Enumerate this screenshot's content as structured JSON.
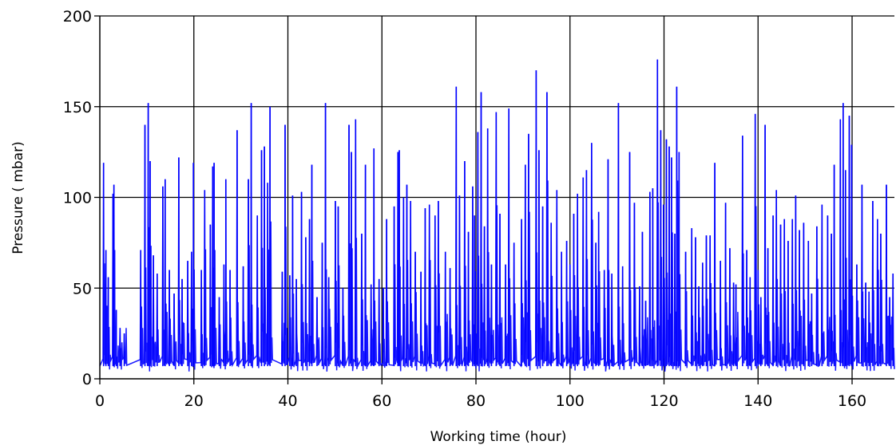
{
  "chart_data": {
    "type": "line",
    "title": "",
    "xlabel": "Working time (hour)",
    "ylabel": "Pressure ( mbar)",
    "xlim": [
      0,
      169
    ],
    "ylim": [
      0,
      200
    ],
    "xticks": [
      0,
      20,
      40,
      60,
      80,
      100,
      120,
      140,
      160
    ],
    "yticks": [
      0,
      50,
      100,
      150,
      200
    ],
    "xtick_labels": [
      "0",
      "20",
      "40",
      "60",
      "80",
      "100",
      "120",
      "140",
      "160"
    ],
    "ytick_labels": [
      "0",
      "50",
      "100",
      "150",
      "200"
    ],
    "grid": true,
    "series": [
      {
        "color": "#0000ff",
        "baseline": 7,
        "peaks": [
          [
            0.8,
            119
          ],
          [
            1.3,
            71
          ],
          [
            1.8,
            56
          ],
          [
            2.8,
            102
          ],
          [
            3.0,
            107
          ],
          [
            3.5,
            38
          ],
          [
            4.3,
            28
          ],
          [
            5.2,
            25
          ],
          [
            8.7,
            71
          ],
          [
            9.6,
            140
          ],
          [
            10.3,
            152
          ],
          [
            10.7,
            120
          ],
          [
            11.4,
            68
          ],
          [
            12.2,
            58
          ],
          [
            13.4,
            106
          ],
          [
            13.9,
            110
          ],
          [
            14.8,
            60
          ],
          [
            15.8,
            47
          ],
          [
            16.8,
            122
          ],
          [
            17.5,
            55
          ],
          [
            18.7,
            65
          ],
          [
            19.5,
            70
          ],
          [
            19.9,
            119
          ],
          [
            21.6,
            60
          ],
          [
            22.3,
            104
          ],
          [
            23.5,
            85
          ],
          [
            24.0,
            117
          ],
          [
            24.3,
            119
          ],
          [
            25.4,
            45
          ],
          [
            26.4,
            63
          ],
          [
            26.8,
            110
          ],
          [
            27.7,
            60
          ],
          [
            29.2,
            137
          ],
          [
            30.5,
            62
          ],
          [
            31.6,
            110
          ],
          [
            32.2,
            152
          ],
          [
            33.5,
            90
          ],
          [
            34.4,
            126
          ],
          [
            35.0,
            128
          ],
          [
            35.7,
            108
          ],
          [
            36.2,
            150
          ],
          [
            38.8,
            59
          ],
          [
            39.4,
            140
          ],
          [
            40.4,
            57
          ],
          [
            41.0,
            101
          ],
          [
            41.8,
            55
          ],
          [
            42.9,
            103
          ],
          [
            43.8,
            78
          ],
          [
            44.6,
            88
          ],
          [
            45.1,
            118
          ],
          [
            46.2,
            45
          ],
          [
            47.3,
            75
          ],
          [
            48.0,
            152
          ],
          [
            48.7,
            56
          ],
          [
            50.1,
            98
          ],
          [
            50.7,
            95
          ],
          [
            51.7,
            50
          ],
          [
            53.0,
            140
          ],
          [
            53.5,
            125
          ],
          [
            54.4,
            143
          ],
          [
            55.7,
            80
          ],
          [
            56.5,
            118
          ],
          [
            57.7,
            52
          ],
          [
            58.3,
            127
          ],
          [
            59.4,
            55
          ],
          [
            60.3,
            50
          ],
          [
            61.0,
            88
          ],
          [
            62.6,
            95
          ],
          [
            63.4,
            125
          ],
          [
            63.7,
            126
          ],
          [
            64.6,
            100
          ],
          [
            65.3,
            107
          ],
          [
            66.1,
            98
          ],
          [
            67.1,
            70
          ],
          [
            68.3,
            59
          ],
          [
            69.2,
            94
          ],
          [
            70.1,
            96
          ],
          [
            71.3,
            90
          ],
          [
            72.0,
            98
          ],
          [
            73.5,
            70
          ],
          [
            74.5,
            61
          ],
          [
            75.8,
            161
          ],
          [
            76.5,
            101
          ],
          [
            77.6,
            120
          ],
          [
            78.4,
            81
          ],
          [
            79.3,
            106
          ],
          [
            79.7,
            90
          ],
          [
            80.4,
            136
          ],
          [
            81.1,
            158
          ],
          [
            81.8,
            84
          ],
          [
            82.5,
            138
          ],
          [
            83.3,
            63
          ],
          [
            84.3,
            147
          ],
          [
            85.1,
            91
          ],
          [
            86.3,
            63
          ],
          [
            87.0,
            149
          ],
          [
            88.1,
            75
          ],
          [
            89.7,
            88
          ],
          [
            90.5,
            118
          ],
          [
            91.2,
            135
          ],
          [
            92.8,
            170
          ],
          [
            93.4,
            126
          ],
          [
            94.2,
            95
          ],
          [
            95.1,
            158
          ],
          [
            96.0,
            86
          ],
          [
            97.2,
            104
          ],
          [
            98.2,
            70
          ],
          [
            99.3,
            76
          ],
          [
            100.0,
            63
          ],
          [
            100.8,
            91
          ],
          [
            101.6,
            102
          ],
          [
            102.8,
            111
          ],
          [
            103.5,
            115
          ],
          [
            104.6,
            130
          ],
          [
            105.5,
            75
          ],
          [
            106.1,
            92
          ],
          [
            107.3,
            60
          ],
          [
            108.1,
            121
          ],
          [
            108.9,
            58
          ],
          [
            110.3,
            152
          ],
          [
            111.2,
            62
          ],
          [
            112.7,
            125
          ],
          [
            113.7,
            97
          ],
          [
            114.8,
            51
          ],
          [
            115.4,
            81
          ],
          [
            116.1,
            43
          ],
          [
            117.0,
            103
          ],
          [
            117.6,
            105
          ],
          [
            118.6,
            176
          ],
          [
            119.3,
            137
          ],
          [
            119.9,
            96
          ],
          [
            120.5,
            132
          ],
          [
            121.1,
            128
          ],
          [
            121.6,
            122
          ],
          [
            122.3,
            80
          ],
          [
            122.7,
            161
          ],
          [
            123.2,
            125
          ],
          [
            124.6,
            70
          ],
          [
            125.9,
            83
          ],
          [
            126.7,
            78
          ],
          [
            127.4,
            51
          ],
          [
            128.2,
            64
          ],
          [
            129.0,
            79
          ],
          [
            129.8,
            79
          ],
          [
            130.8,
            119
          ],
          [
            132.0,
            65
          ],
          [
            133.1,
            97
          ],
          [
            134.0,
            72
          ],
          [
            134.8,
            53
          ],
          [
            135.3,
            52
          ],
          [
            136.7,
            134
          ],
          [
            137.6,
            71
          ],
          [
            138.3,
            56
          ],
          [
            139.4,
            146
          ],
          [
            140.0,
            60
          ],
          [
            140.6,
            45
          ],
          [
            141.5,
            140
          ],
          [
            142.1,
            72
          ],
          [
            143.2,
            90
          ],
          [
            143.9,
            104
          ],
          [
            144.8,
            85
          ],
          [
            145.6,
            88
          ],
          [
            146.4,
            76
          ],
          [
            147.3,
            88
          ],
          [
            148.0,
            101
          ],
          [
            148.8,
            82
          ],
          [
            149.7,
            86
          ],
          [
            150.7,
            76
          ],
          [
            151.4,
            47
          ],
          [
            152.5,
            84
          ],
          [
            153.6,
            96
          ],
          [
            154.8,
            90
          ],
          [
            155.6,
            80
          ],
          [
            156.2,
            118
          ],
          [
            157.5,
            143
          ],
          [
            158.1,
            152
          ],
          [
            158.6,
            115
          ],
          [
            159.4,
            145
          ],
          [
            159.9,
            129
          ],
          [
            161.0,
            63
          ],
          [
            162.1,
            107
          ],
          [
            162.9,
            53
          ],
          [
            163.6,
            48
          ],
          [
            164.4,
            98
          ],
          [
            165.4,
            88
          ],
          [
            166.1,
            80
          ],
          [
            167.3,
            107
          ],
          [
            168.0,
            45
          ],
          [
            168.7,
            58
          ]
        ]
      }
    ]
  }
}
